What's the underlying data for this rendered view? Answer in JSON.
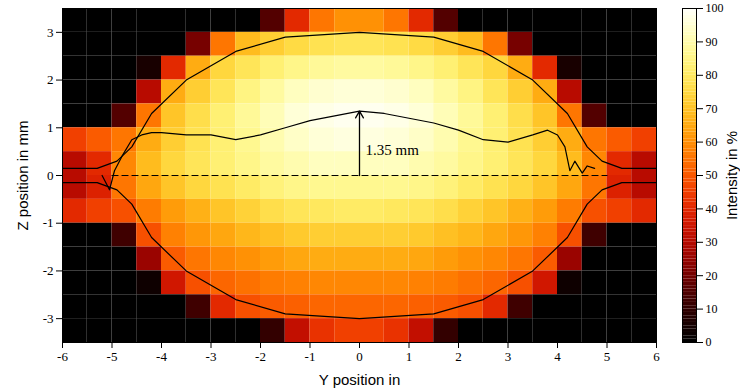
{
  "chart_data": {
    "type": "heatmap",
    "x_label": "Y position in",
    "y_label": "Z position in mm",
    "xlim": [
      -6,
      6
    ],
    "xticks": [
      -6,
      -5,
      -4,
      -3,
      -2,
      -1,
      0,
      1,
      2,
      3,
      4,
      5,
      6
    ],
    "ylim": [
      -3.5,
      3.5
    ],
    "yticks": [
      -3,
      -2,
      -1,
      0,
      1,
      2,
      3
    ],
    "y_bins": [
      -6,
      -5.5,
      -5,
      -4.5,
      -4,
      -3.5,
      -3,
      -2.5,
      -2,
      -1.5,
      -1,
      -0.5,
      0,
      0.5,
      1,
      1.5,
      2,
      2.5,
      3,
      3.5,
      4,
      4.5,
      5,
      5.5,
      6
    ],
    "z_bins": [
      3.5,
      3,
      2.5,
      2,
      1.5,
      1,
      0.5,
      0,
      -0.5,
      -1,
      -1.5,
      -2,
      -2.5,
      -3,
      -3.5
    ],
    "cells": [
      [
        0,
        0,
        0,
        0,
        0,
        0,
        0,
        0,
        15,
        40,
        55,
        60,
        60,
        55,
        40,
        15,
        0,
        0,
        0,
        0,
        0,
        0,
        0,
        0
      ],
      [
        0,
        0,
        0,
        0,
        0,
        20,
        55,
        68,
        72,
        75,
        77,
        78,
        78,
        77,
        75,
        72,
        68,
        55,
        20,
        0,
        0,
        0,
        0,
        0
      ],
      [
        0,
        0,
        0,
        5,
        40,
        65,
        74,
        78,
        82,
        85,
        87,
        88,
        88,
        87,
        85,
        82,
        78,
        74,
        65,
        40,
        5,
        0,
        0,
        0
      ],
      [
        0,
        0,
        0,
        30,
        65,
        72,
        78,
        84,
        88,
        92,
        94,
        95,
        95,
        94,
        92,
        88,
        84,
        78,
        72,
        65,
        30,
        0,
        0,
        0
      ],
      [
        0,
        0,
        15,
        55,
        70,
        76,
        82,
        87,
        91,
        95,
        97,
        98,
        98,
        97,
        95,
        91,
        87,
        82,
        76,
        70,
        55,
        15,
        0,
        0
      ],
      [
        45,
        50,
        55,
        65,
        72,
        77,
        82,
        86,
        90,
        93,
        95,
        96,
        96,
        95,
        93,
        90,
        86,
        82,
        77,
        72,
        65,
        55,
        50,
        45
      ],
      [
        30,
        40,
        58,
        68,
        74,
        78,
        82,
        85,
        88,
        90,
        92,
        92,
        92,
        92,
        90,
        88,
        85,
        82,
        78,
        74,
        68,
        58,
        40,
        30
      ],
      [
        30,
        38,
        55,
        64,
        70,
        74,
        77,
        80,
        83,
        85,
        86,
        86,
        86,
        86,
        85,
        83,
        80,
        77,
        74,
        70,
        64,
        55,
        38,
        30
      ],
      [
        40,
        45,
        48,
        56,
        62,
        66,
        70,
        73,
        76,
        78,
        79,
        80,
        80,
        79,
        78,
        76,
        73,
        70,
        66,
        62,
        56,
        48,
        45,
        40
      ],
      [
        0,
        0,
        12,
        48,
        57,
        61,
        64,
        67,
        69,
        71,
        72,
        72,
        72,
        72,
        71,
        69,
        67,
        64,
        61,
        57,
        48,
        12,
        0,
        0
      ],
      [
        0,
        0,
        0,
        25,
        50,
        55,
        58,
        60,
        62,
        64,
        65,
        65,
        65,
        65,
        64,
        62,
        60,
        58,
        55,
        50,
        25,
        0,
        0,
        0
      ],
      [
        0,
        0,
        0,
        3,
        35,
        48,
        52,
        54,
        56,
        57,
        58,
        58,
        58,
        58,
        57,
        56,
        54,
        52,
        48,
        35,
        3,
        0,
        0,
        0
      ],
      [
        0,
        0,
        0,
        0,
        0,
        12,
        40,
        48,
        50,
        51,
        52,
        52,
        52,
        52,
        51,
        50,
        48,
        40,
        12,
        0,
        0,
        0,
        0,
        0
      ],
      [
        0,
        0,
        0,
        0,
        0,
        0,
        0,
        0,
        10,
        32,
        42,
        45,
        45,
        42,
        32,
        10,
        0,
        0,
        0,
        0,
        0,
        0,
        0,
        0
      ]
    ],
    "colorbar": {
      "label": "Intensity in %",
      "lim": [
        0,
        100
      ],
      "ticks": [
        0,
        10,
        20,
        30,
        40,
        50,
        60,
        70,
        80,
        90,
        100
      ]
    },
    "lines": [
      {
        "color": "#000000",
        "line_style": "solid",
        "x": [
          -6,
          -5.3,
          -4.9,
          -4.6,
          -4.2,
          -3.5,
          -2.5,
          -1.5,
          0,
          1.5,
          2.5,
          3.5,
          4.2,
          4.6,
          4.9,
          5.3,
          6
        ],
        "y": [
          0.15,
          0.15,
          0.3,
          0.6,
          1.3,
          2.0,
          2.6,
          2.9,
          3.0,
          2.9,
          2.6,
          2.0,
          1.3,
          0.6,
          0.3,
          0.15,
          0.15
        ]
      },
      {
        "color": "#000000",
        "line_style": "solid",
        "x": [
          -6,
          -5.3,
          -4.9,
          -4.6,
          -4.2,
          -3.5,
          -2.5,
          -1.5,
          0,
          1.5,
          2.5,
          3.5,
          4.2,
          4.6,
          4.9,
          5.3,
          6
        ],
        "y": [
          -0.15,
          -0.15,
          -0.3,
          -0.6,
          -1.3,
          -2.0,
          -2.6,
          -2.9,
          -3.0,
          -2.9,
          -2.6,
          -2.0,
          -1.3,
          -0.6,
          -0.3,
          -0.15,
          -0.15
        ]
      },
      {
        "color": "#000000",
        "line_style": "dashed",
        "x": [
          -5,
          5
        ],
        "y": [
          0,
          0
        ]
      },
      {
        "color": "#000000",
        "line_style": "solid",
        "x": [
          -5.2,
          -5.05,
          -4.95,
          -4.8,
          -4.6,
          -4.4,
          -4.2,
          -4.0,
          -3.5,
          -3.0,
          -2.5,
          -2.0,
          -1.5,
          -1.0,
          -0.5,
          0,
          0.5,
          1.0,
          1.5,
          2.0,
          2.5,
          3.0,
          3.5,
          3.8,
          4.0,
          4.15,
          4.25,
          4.35,
          4.5,
          4.6,
          4.75
        ],
        "y": [
          0.0,
          -0.3,
          0.1,
          0.4,
          0.75,
          0.85,
          0.9,
          0.9,
          0.85,
          0.85,
          0.75,
          0.85,
          1.0,
          1.15,
          1.25,
          1.35,
          1.3,
          1.2,
          1.1,
          0.95,
          0.75,
          0.7,
          0.85,
          0.95,
          0.85,
          0.6,
          0.1,
          0.3,
          0.05,
          0.2,
          0.15
        ]
      }
    ],
    "annotations": [
      {
        "text": "1.35 mm",
        "x": 0,
        "y1": 0,
        "y2": 1.35
      }
    ]
  }
}
